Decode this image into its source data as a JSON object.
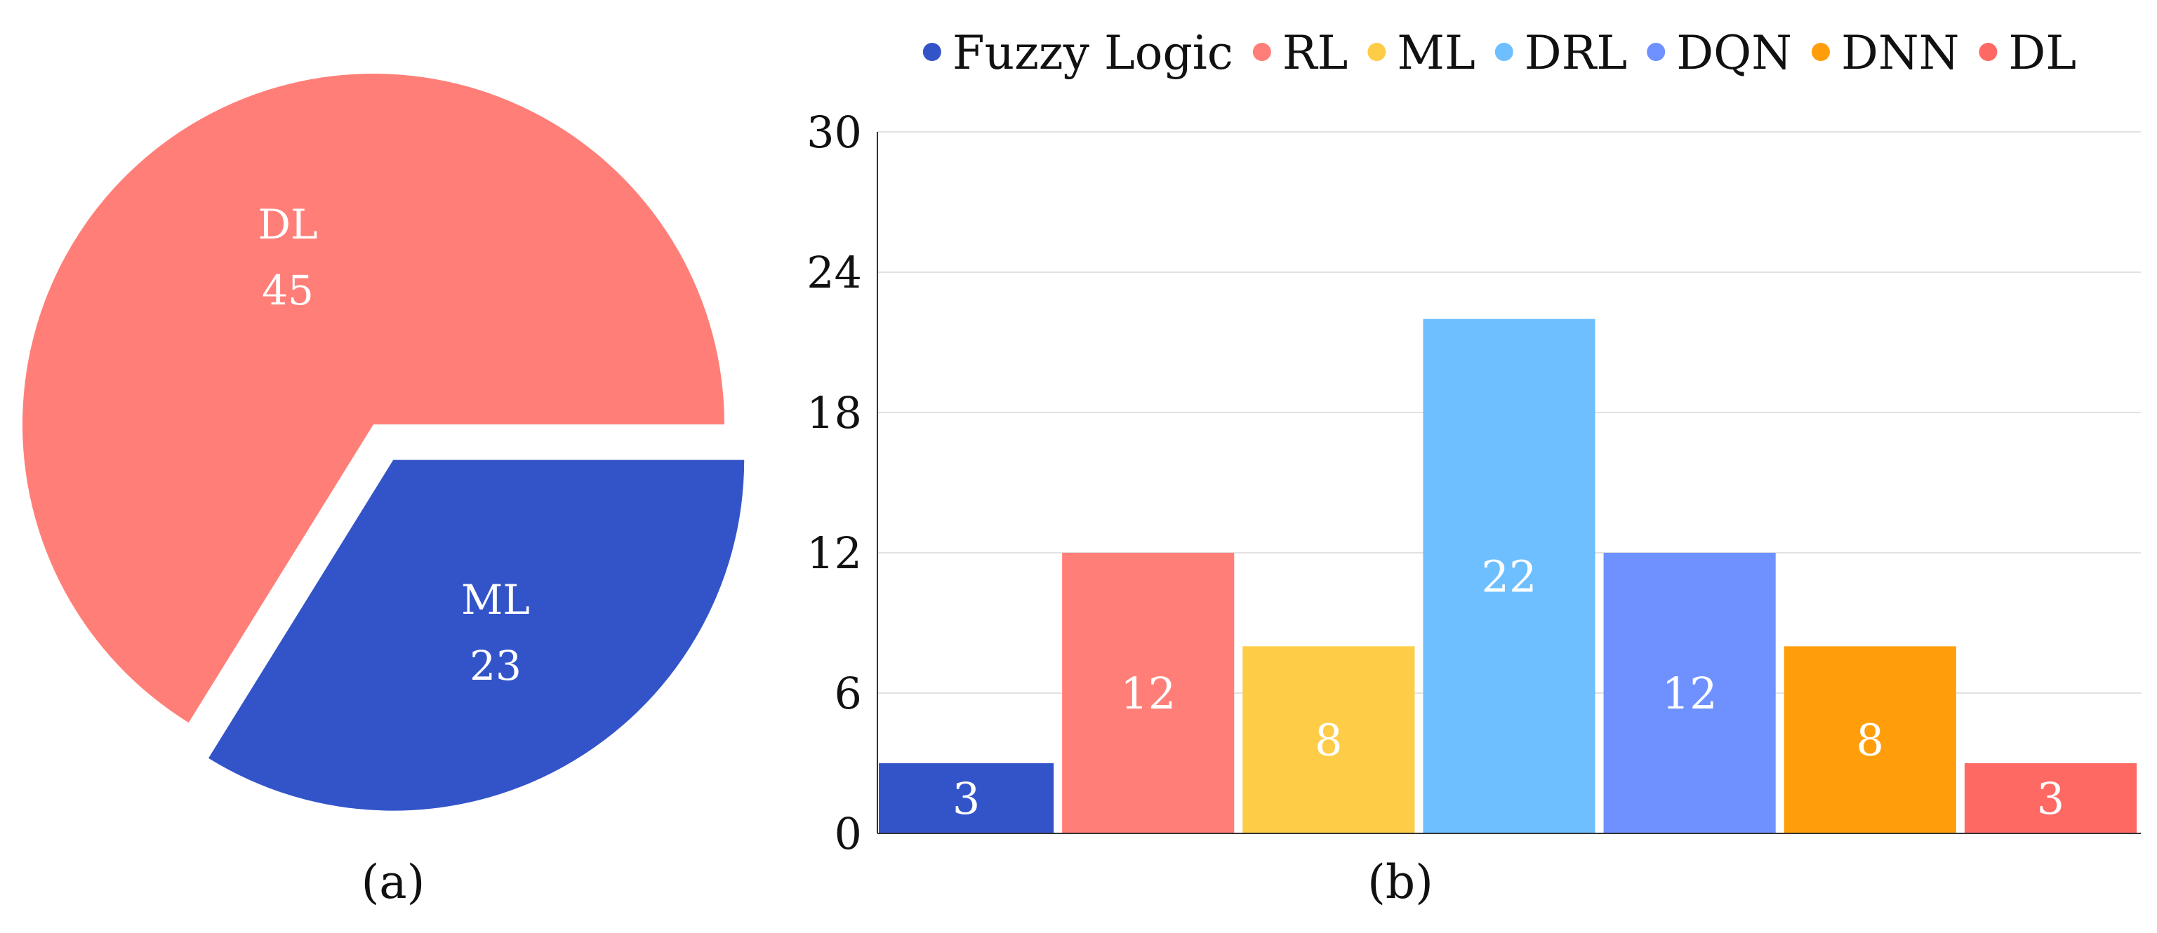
{
  "chart_data": [
    {
      "type": "pie",
      "panel_label": "(a)",
      "labels": [
        "DL",
        "ML"
      ],
      "values": [
        45,
        23
      ],
      "colors": [
        "#FF7F78",
        "#3354C9"
      ],
      "exploded": "ML"
    },
    {
      "type": "bar",
      "panel_label": "(b)",
      "categories": [
        "Fuzzy Logic",
        "RL",
        "ML",
        "DRL",
        "DQN",
        "DNN",
        "DL"
      ],
      "values": [
        3,
        12,
        8,
        22,
        12,
        8,
        3
      ],
      "colors": [
        "#3354C9",
        "#FF7F78",
        "#FFCC47",
        "#6EBFFF",
        "#6E91FF",
        "#FF9E0A",
        "#FF6963"
      ],
      "ylim": [
        0,
        30
      ],
      "yticks": [
        0,
        6,
        12,
        18,
        24,
        30
      ],
      "grid": true,
      "legend_position": "top"
    }
  ]
}
